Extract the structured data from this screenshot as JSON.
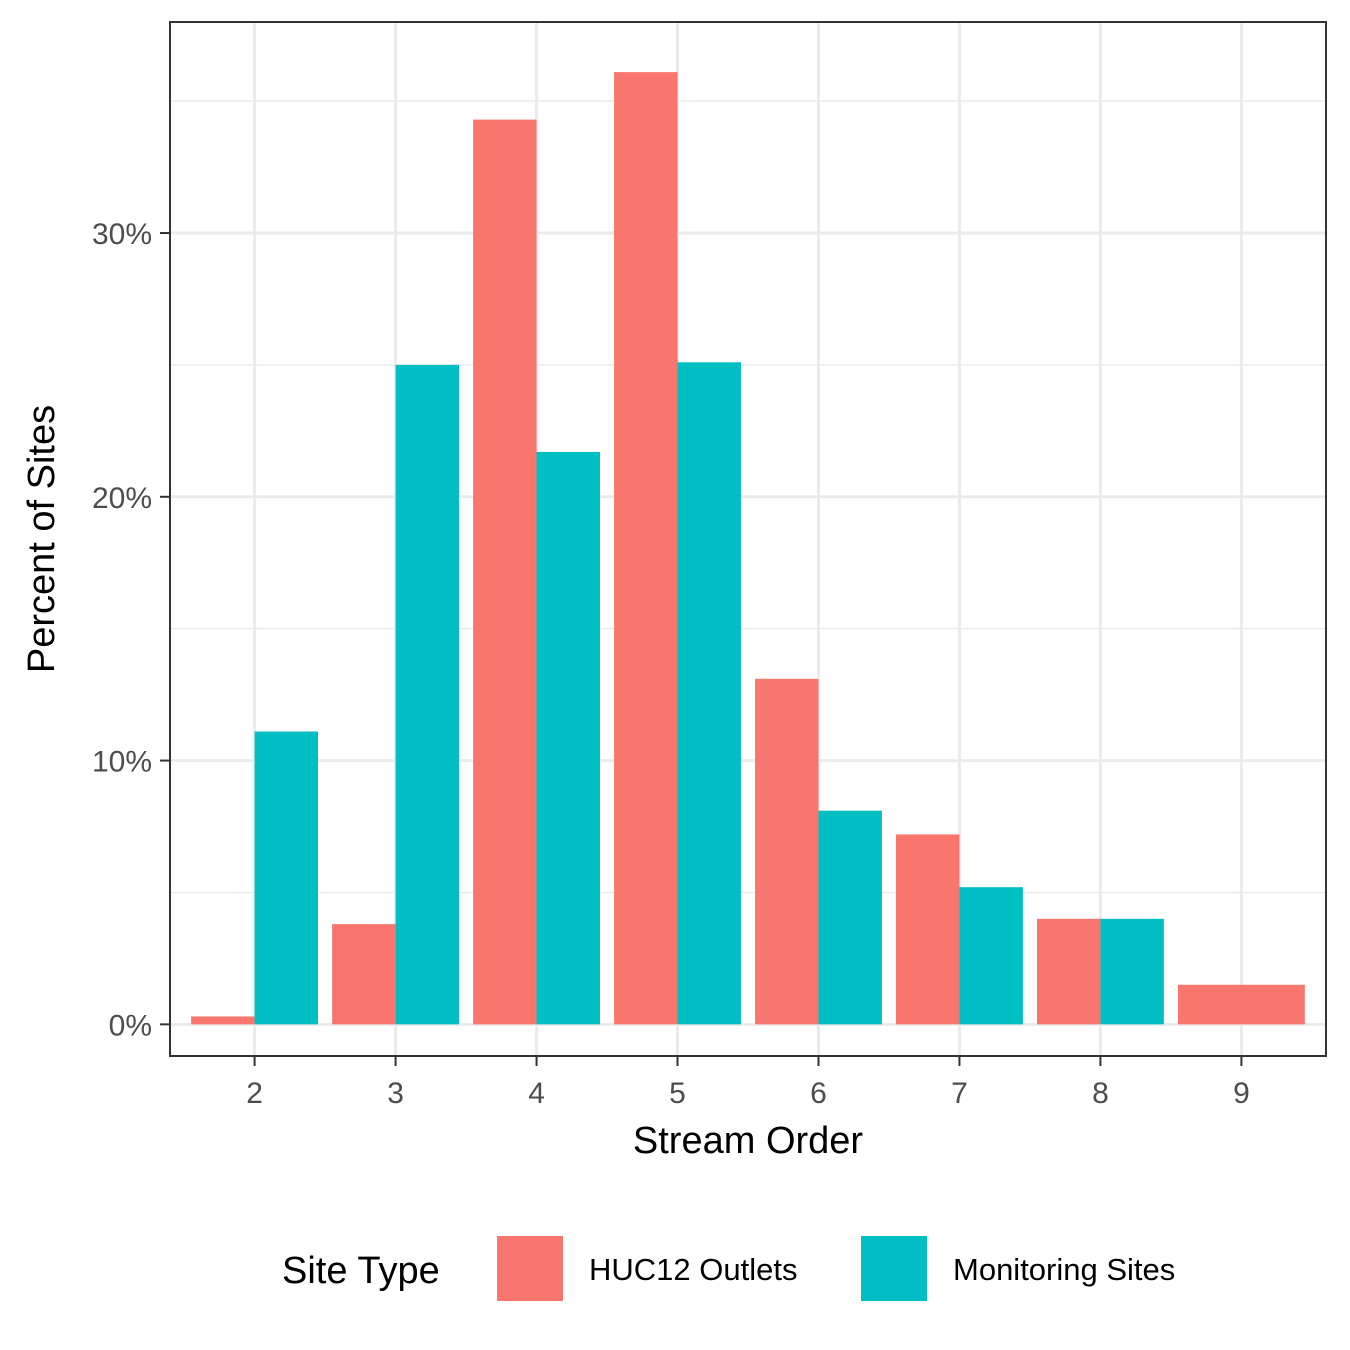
{
  "chart_data": {
    "type": "bar",
    "xlabel": "Stream Order",
    "ylabel": "Percent of Sites",
    "categories": [
      "2",
      "3",
      "4",
      "5",
      "6",
      "7",
      "8",
      "9"
    ],
    "series": [
      {
        "name": "HUC12 Outlets",
        "color": "#F8766D",
        "values": [
          0.3,
          3.8,
          34.3,
          36.1,
          13.1,
          7.2,
          4.0,
          1.5
        ]
      },
      {
        "name": "Monitoring Sites",
        "color": "#00BFC4",
        "values": [
          11.1,
          25.0,
          21.7,
          25.1,
          8.1,
          5.2,
          4.0,
          null
        ]
      }
    ],
    "yticks": [
      0,
      10,
      20,
      30
    ],
    "ytick_labels": [
      "0%",
      "10%",
      "20%",
      "30%"
    ],
    "ylim": [
      -1.2,
      38.0
    ],
    "grid": true,
    "legend": {
      "title": "Site Type",
      "position": "bottom"
    }
  }
}
